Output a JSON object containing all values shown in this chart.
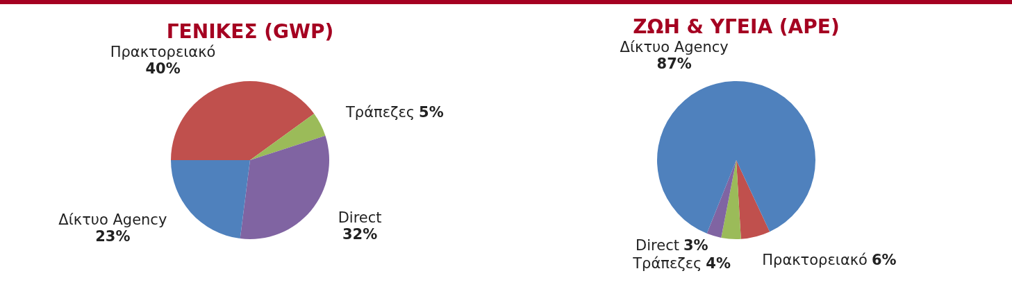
{
  "chart_data": [
    {
      "type": "pie",
      "title": "ΓΕΝΙΚΕΣ (GWP)",
      "categories": [
        "Πρακτορειακό",
        "Τράπεζες",
        "Direct",
        "Δίκτυο Agency"
      ],
      "values": [
        40,
        5,
        32,
        23
      ],
      "colors": [
        "#c0504d",
        "#9bbb59",
        "#8064a2",
        "#4f81bd"
      ],
      "value_labels": [
        "40%",
        "5%",
        "32%",
        "23%"
      ]
    },
    {
      "type": "pie",
      "title": "ΖΩΗ & ΥΓΕΙΑ (APE)",
      "categories": [
        "Πρακτορειακό",
        "Τράπεζες",
        "Direct",
        "Δίκτυο Agency"
      ],
      "values": [
        6,
        4,
        3,
        87
      ],
      "colors": [
        "#c0504d",
        "#9bbb59",
        "#8064a2",
        "#4f81bd"
      ],
      "value_labels": [
        "6%",
        "4%",
        "3%",
        "87%"
      ]
    }
  ]
}
